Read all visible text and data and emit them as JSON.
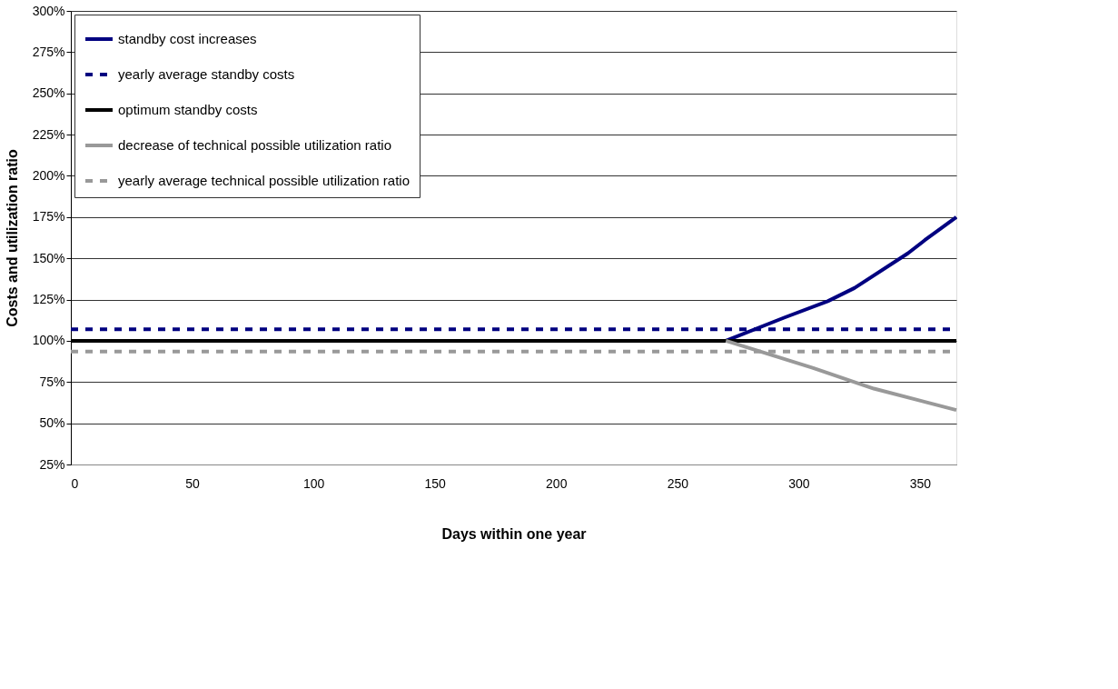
{
  "chart_data": {
    "type": "line",
    "xlabel": "Days within one year",
    "ylabel": "Costs and utilization ratio",
    "xlim": [
      0,
      365
    ],
    "xticks": [
      0,
      50,
      100,
      150,
      200,
      250,
      300,
      350
    ],
    "ylim": [
      25,
      300
    ],
    "yticks": [
      {
        "value": 25,
        "label": "25%"
      },
      {
        "value": 50,
        "label": "50%"
      },
      {
        "value": 75,
        "label": "75%"
      },
      {
        "value": 100,
        "label": "100%"
      },
      {
        "value": 125,
        "label": "125%"
      },
      {
        "value": 150,
        "label": "150%"
      },
      {
        "value": 175,
        "label": "175%"
      },
      {
        "value": 200,
        "label": "200%"
      },
      {
        "value": 225,
        "label": "225%"
      },
      {
        "value": 250,
        "label": "250%"
      },
      {
        "value": 275,
        "label": "275%"
      },
      {
        "value": 300,
        "label": "300%"
      }
    ],
    "grid": "y",
    "legend": "top left",
    "marker": "none",
    "series": [
      {
        "name": "standby cost increases",
        "color": "#000080",
        "line_style": "solid",
        "x": [
          270,
          294,
          312,
          323,
          345,
          352,
          365
        ],
        "values": [
          100,
          114,
          124,
          132,
          153,
          161,
          175
        ]
      },
      {
        "name": "yearly average standby costs",
        "color": "#000080",
        "line_style": "dashed",
        "x": [
          0,
          365
        ],
        "values": [
          107,
          107
        ]
      },
      {
        "name": "optimum standby costs",
        "color": "#000000",
        "line_style": "solid",
        "x": [
          0,
          365
        ],
        "values": [
          100,
          100
        ]
      },
      {
        "name": "decrease of technical possible utilization ratio",
        "color": "#999999",
        "line_style": "solid",
        "x": [
          270,
          306,
          323,
          331,
          365
        ],
        "values": [
          100,
          83.5,
          75,
          71,
          58
        ]
      },
      {
        "name": "yearly average technical possible utilization ratio",
        "color": "#999999",
        "line_style": "dashed",
        "x": [
          0,
          365
        ],
        "values": [
          93.5,
          93.5
        ]
      }
    ]
  }
}
